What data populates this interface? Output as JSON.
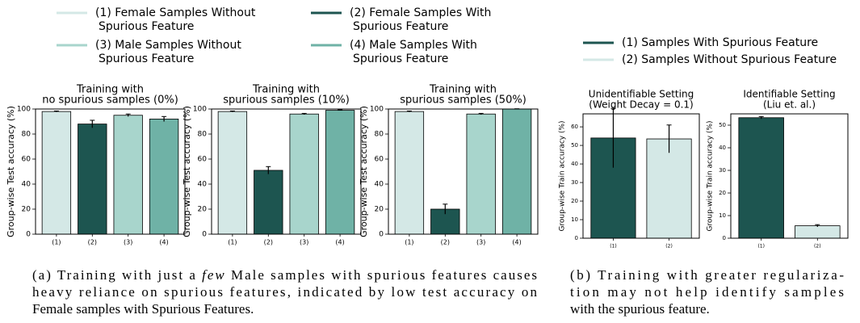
{
  "chart_data": [
    {
      "type": "bar",
      "title": [
        "Training with",
        "no spurious samples (0%)"
      ],
      "ylabel": "Group-wise Test accuracy (%)",
      "categories": [
        "(1)",
        "(2)",
        "(3)",
        "(4)"
      ],
      "values": [
        98,
        88,
        95,
        92
      ],
      "errors": [
        0.4,
        3,
        1,
        2
      ],
      "colors": [
        "#d4e8e6",
        "#1d5550",
        "#a8d5cc",
        "#6fb2a6"
      ],
      "ylim": [
        0,
        100
      ],
      "yticks": [
        0,
        20,
        40,
        60,
        80,
        100
      ]
    },
    {
      "type": "bar",
      "title": [
        "Training with",
        "spurious samples (10%)"
      ],
      "ylabel": "Group-wise Test accuracy (%)",
      "categories": [
        "(1)",
        "(2)",
        "(3)",
        "(4)"
      ],
      "values": [
        98,
        51,
        96,
        99
      ],
      "errors": [
        0.4,
        3,
        0.5,
        0.3
      ],
      "colors": [
        "#d4e8e6",
        "#1d5550",
        "#a8d5cc",
        "#6fb2a6"
      ],
      "ylim": [
        0,
        100
      ],
      "yticks": [
        0,
        20,
        40,
        60,
        80,
        100
      ]
    },
    {
      "type": "bar",
      "title": [
        "Training with",
        "spurious samples (50%)"
      ],
      "ylabel": "Group-wise Test accuracy (%)",
      "categories": [
        "(1)",
        "(2)",
        "(3)",
        "(4)"
      ],
      "values": [
        98,
        20,
        96,
        100
      ],
      "errors": [
        0.4,
        4,
        0.5,
        0.2
      ],
      "colors": [
        "#d4e8e6",
        "#1d5550",
        "#a8d5cc",
        "#6fb2a6"
      ],
      "ylim": [
        0,
        100
      ],
      "yticks": [
        0,
        20,
        40,
        60,
        80,
        100
      ]
    },
    {
      "type": "bar",
      "title": [
        "Unidentifiable Setting",
        "(Weight Decay = 0.1)"
      ],
      "ylabel": "Group-wise Train accuracy (%)",
      "categories": [
        "(1)",
        "(2)"
      ],
      "values": [
        54,
        53.5
      ],
      "errors": [
        16,
        7.5
      ],
      "colors": [
        "#1d5550",
        "#d4e8e6"
      ],
      "ylim": [
        0,
        67
      ],
      "yticks": [
        0,
        10,
        20,
        30,
        40,
        50,
        60
      ]
    },
    {
      "type": "bar",
      "title": [
        "Identifiable Setting",
        "(Liu et. al.)"
      ],
      "ylabel": "Group-wise Train accuracy (%)",
      "categories": [
        "(1)",
        "(2)"
      ],
      "values": [
        53.3,
        5.5
      ],
      "errors": [
        0.5,
        0.5
      ],
      "colors": [
        "#1d5550",
        "#d4e8e6"
      ],
      "ylim": [
        0,
        55
      ],
      "yticks": [
        0,
        10,
        20,
        30,
        40,
        50
      ]
    }
  ],
  "legends": [
    {
      "entries": [
        {
          "lines": [
            "(1) Female Samples Without",
            "Spurious Feature"
          ],
          "color": "#d4e8e6"
        },
        {
          "lines": [
            "(2) Female Samples With",
            "Spurious Feature"
          ],
          "color": "#1d5550"
        },
        {
          "lines": [
            "(3) Male Samples Without",
            "Spurious Feature"
          ],
          "color": "#a8d5cc"
        },
        {
          "lines": [
            "(4) Male Samples With",
            "Spurious Feature"
          ],
          "color": "#6fb2a6"
        }
      ]
    },
    {
      "entries": [
        {
          "lines": [
            "(1) Samples With Spurious Feature"
          ],
          "color": "#1d5550"
        },
        {
          "lines": [
            "(2) Samples Without Spurious Feature"
          ],
          "color": "#d4e8e6"
        }
      ]
    }
  ],
  "captions": [
    {
      "lines": [
        [
          "(a) Training with just a ",
          "few",
          " Male samples with spurious features causes"
        ],
        [
          "heavy reliance on spurious features, indicated by low test accuracy on"
        ],
        [
          "Female samples with Spurious Features."
        ]
      ]
    },
    {
      "lines": [
        [
          "(b) Training with greater regulariza-"
        ],
        [
          "tion may not help identify samples"
        ],
        [
          "with the spurious feature."
        ]
      ]
    }
  ]
}
